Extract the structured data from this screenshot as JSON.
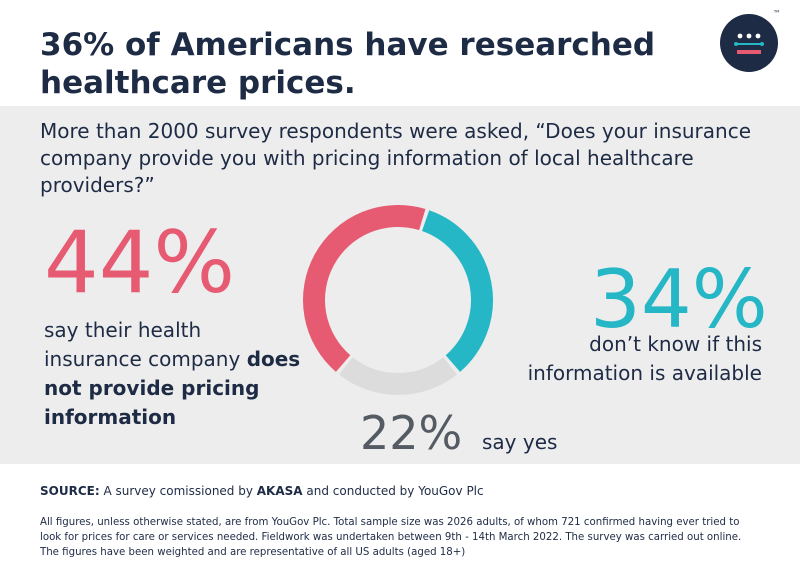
{
  "header": {
    "title": "36% of Americans have researched healthcare prices.",
    "logo_icon": "akasa-logo-icon",
    "trademark": "™"
  },
  "question": "More than 2000 survey respondents were asked, “Does your insurance company provide you with pricing information of local healthcare providers?”",
  "left": {
    "percent": "44%",
    "text_plain": "say their health insurance company ",
    "text_bold": "does not provide pricing information"
  },
  "right": {
    "percent": "34%",
    "text": "don’t know if this information is available"
  },
  "bottom": {
    "percent": "22%",
    "text": "say yes"
  },
  "chart_data": {
    "type": "pie",
    "subtype": "donut",
    "categories": [
      "does not provide pricing information",
      "don’t know if this information is available",
      "say yes"
    ],
    "values": [
      44,
      34,
      22
    ],
    "unit": "%",
    "colors": [
      "#e65a72",
      "#25b7c6",
      "#dcdcdc"
    ]
  },
  "source": {
    "label": "SOURCE:",
    "text1": " A survey comissioned by ",
    "brand": "AKASA",
    "text2": " and conducted by YouGov Plc"
  },
  "footnote": "All figures, unless otherwise stated, are from YouGov Plc. Total sample size was 2026 adults, of whom 721 confirmed having ever tried to look for prices for care or services needed. Fieldwork was undertaken between 9th - 14th March 2022.  The survey was carried out online. The figures have been weighted and are representative of all US adults (aged 18+)",
  "colors": {
    "navy": "#1e2b45",
    "coral": "#e65a72",
    "teal": "#25b7c6",
    "grey": "#dcdcdc",
    "panel": "#ededed"
  }
}
